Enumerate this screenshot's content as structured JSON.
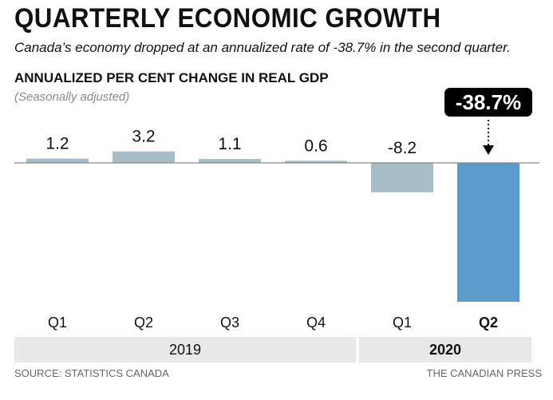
{
  "header": {
    "title": "QUARTERLY ECONOMIC GROWTH",
    "subtitle": "Canada’s economy dropped at an annualized rate of -38.7% in the second quarter."
  },
  "chart_data": {
    "type": "bar",
    "title": "ANNUALIZED PER CENT CHANGE IN REAL GDP",
    "subtitle": "(Seasonally adjusted)",
    "categories": [
      "Q1",
      "Q2",
      "Q3",
      "Q4",
      "Q1",
      "Q2"
    ],
    "values": [
      1.2,
      3.2,
      1.1,
      0.6,
      -8.2,
      -38.7
    ],
    "value_labels": [
      "1.2",
      "3.2",
      "1.1",
      "0.6",
      "-8.2",
      "-38.7%"
    ],
    "highlight_index": 5,
    "groups": [
      {
        "label": "2019",
        "start": 0,
        "end": 3
      },
      {
        "label": "2020",
        "start": 4,
        "end": 5
      }
    ],
    "ylim": [
      -38.7,
      3.2
    ],
    "grid": false,
    "colors": {
      "bar": "#a9bdc9",
      "highlight": "#5b9bcb",
      "baseline": "#888888",
      "band": "#e8e8e8",
      "callout": "#000000"
    }
  },
  "footer": {
    "source": "SOURCE: STATISTICS CANADA",
    "credit": "THE CANADIAN PRESS"
  }
}
